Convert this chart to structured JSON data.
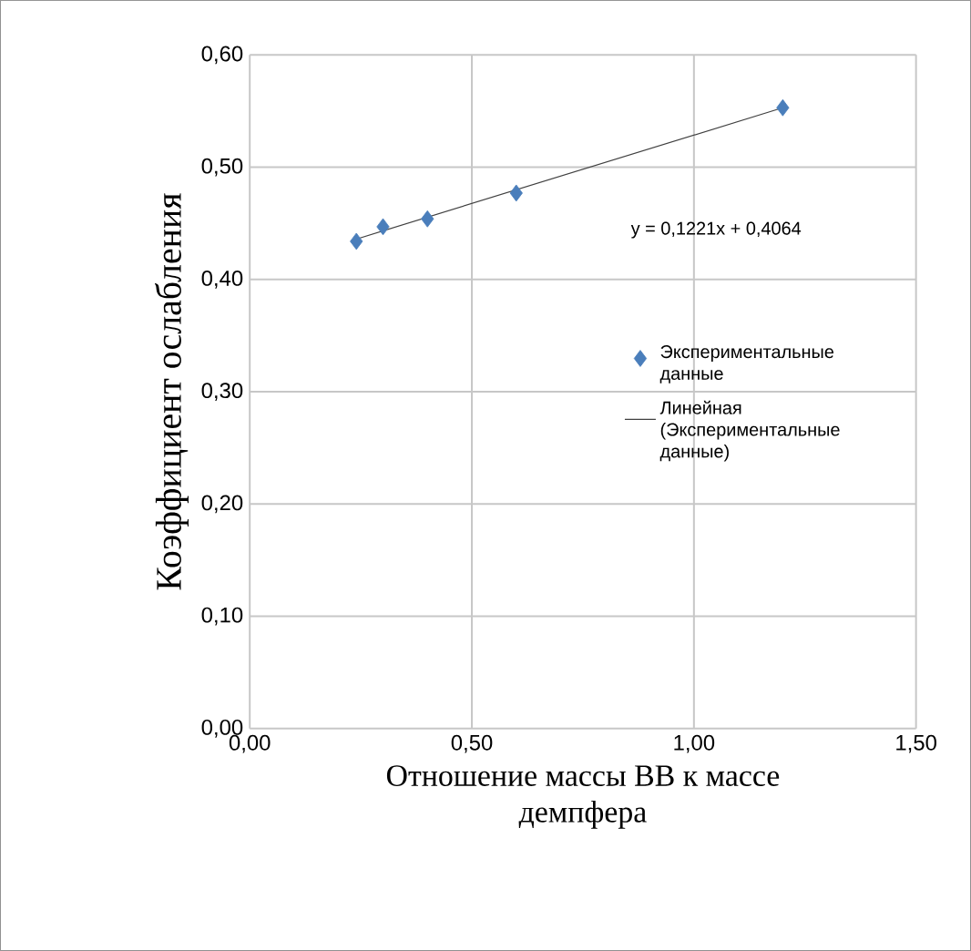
{
  "chart_data": {
    "type": "scatter",
    "xlabel": "Отношение массы ВВ к массе демпфера",
    "ylabel": "Коэффициент ослабления",
    "series": [
      {
        "name": "Экспериментальные данные",
        "color": "#4a7ebb",
        "marker": "diamond",
        "x": [
          0.24,
          0.3,
          0.4,
          0.6,
          1.2
        ],
        "values": [
          0.434,
          0.447,
          0.454,
          0.477,
          0.553
        ]
      },
      {
        "name": "Линейная (Экспериментальные данные)",
        "type": "line",
        "color": "#404040",
        "marker": "none",
        "line_style": "solid",
        "x": [
          0.24,
          1.2
        ],
        "values": [
          0.436,
          0.553
        ]
      }
    ],
    "annotations": [
      "y = 0,1221x + 0,4064"
    ],
    "xlim": [
      0,
      1.5
    ],
    "ylim": [
      0,
      0.6
    ],
    "xticks": [
      {
        "value": 0,
        "label": "0,00"
      },
      {
        "value": 0.5,
        "label": "0,50"
      },
      {
        "value": 1,
        "label": "1,00"
      },
      {
        "value": 1.5,
        "label": "1,50"
      }
    ],
    "yticks": [
      {
        "value": 0,
        "label": "0,00"
      },
      {
        "value": 0.1,
        "label": "0,10"
      },
      {
        "value": 0.2,
        "label": "0,20"
      },
      {
        "value": 0.3,
        "label": "0,30"
      },
      {
        "value": 0.4,
        "label": "0,40"
      },
      {
        "value": 0.5,
        "label": "0,50"
      },
      {
        "value": 0.6,
        "label": "0,60"
      }
    ],
    "grid": true,
    "legend": "right"
  }
}
